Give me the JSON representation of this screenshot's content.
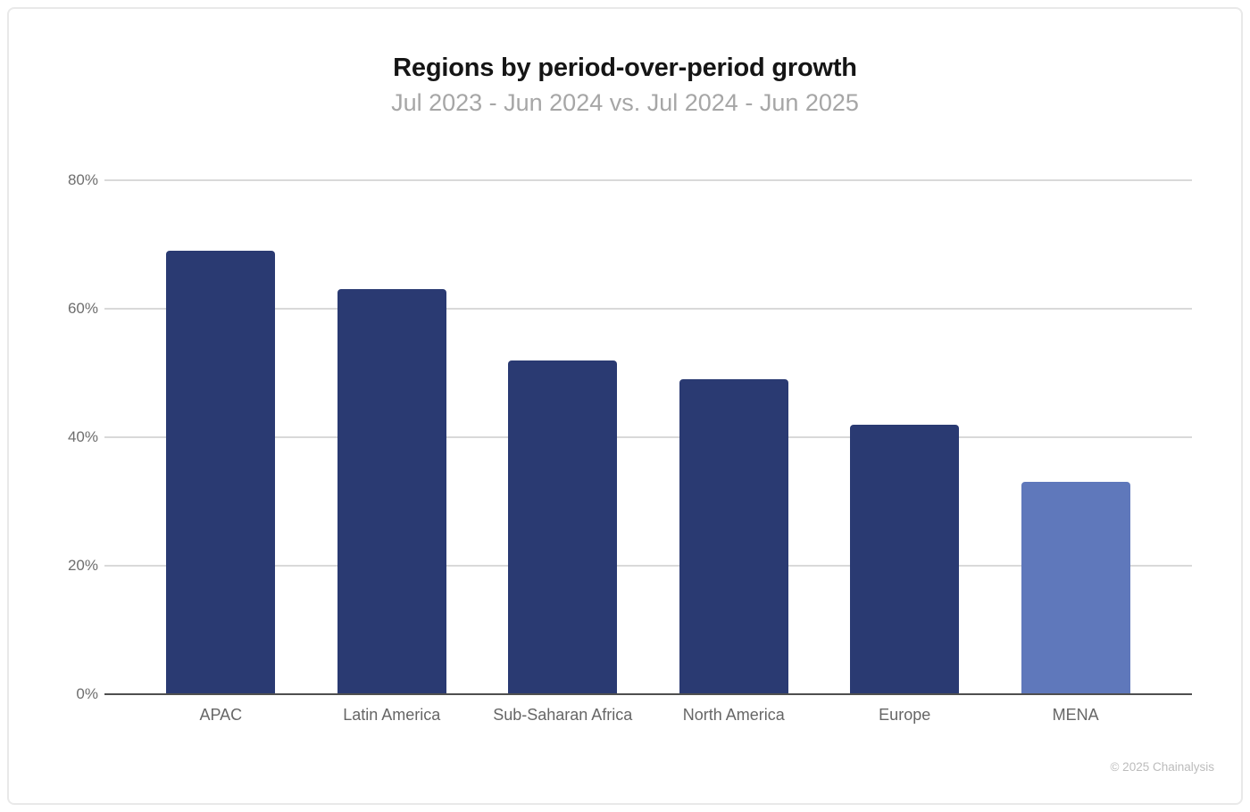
{
  "page": {
    "copyright": "© 2025 Chainalysis"
  },
  "chart_data": {
    "type": "bar",
    "title": "Regions by period-over-period growth",
    "subtitle": "Jul 2023 - Jun 2024 vs. Jul 2024 - Jun 2025",
    "categories": [
      "APAC",
      "Latin America",
      "Sub-Saharan Africa",
      "North America",
      "Europe",
      "MENA"
    ],
    "values": [
      69,
      63,
      52,
      49,
      42,
      33
    ],
    "unit": "%",
    "ylim": [
      0,
      80
    ],
    "yticks": [
      0,
      20,
      40,
      60,
      80
    ],
    "ytick_labels": [
      "0%",
      "20%",
      "40%",
      "60%",
      "80%"
    ],
    "grid": true,
    "legend": false,
    "bar_colors": [
      "#2a3a72",
      "#2a3a72",
      "#2a3a72",
      "#2a3a72",
      "#2a3a72",
      "#5f78bb"
    ],
    "colors": {
      "bar_default": "#2a3a72",
      "bar_highlight": "#5f78bb",
      "gridline": "#d9d9d9",
      "axis_line": "#4f4f4f",
      "tick_label": "#6e6e6e",
      "title": "#151515",
      "subtitle": "#a6a6a6",
      "copyright": "#bcbcbc"
    }
  }
}
